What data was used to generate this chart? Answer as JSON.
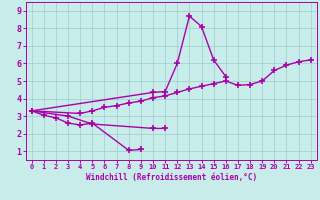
{
  "xlabel": "Windchill (Refroidissement éolien,°C)",
  "ylabel": "",
  "xlim": [
    -0.5,
    23.5
  ],
  "ylim": [
    0.5,
    9.5
  ],
  "xticks": [
    0,
    1,
    2,
    3,
    4,
    5,
    6,
    7,
    8,
    9,
    10,
    11,
    12,
    13,
    14,
    15,
    16,
    17,
    18,
    19,
    20,
    21,
    22,
    23
  ],
  "yticks": [
    1,
    2,
    3,
    4,
    5,
    6,
    7,
    8,
    9
  ],
  "bg_color": "#c8ecea",
  "grid_color": "#a0d4d0",
  "line_color": "#aa00aa",
  "line_width": 1.0,
  "marker": "+",
  "marker_size": 4,
  "marker_edge_width": 1.2,
  "series": [
    {
      "x": [
        0,
        1,
        2,
        3,
        4,
        5,
        8,
        9
      ],
      "y": [
        3.3,
        3.05,
        2.9,
        2.6,
        2.5,
        2.6,
        1.05,
        1.1
      ]
    },
    {
      "x": [
        0,
        3,
        5,
        10,
        11
      ],
      "y": [
        3.3,
        3.0,
        2.55,
        2.3,
        2.3
      ]
    },
    {
      "x": [
        0,
        10,
        11,
        12,
        13,
        14,
        15,
        16
      ],
      "y": [
        3.3,
        4.35,
        4.4,
        6.0,
        8.7,
        8.1,
        6.2,
        5.25
      ]
    },
    {
      "x": [
        0,
        4,
        5,
        6,
        7,
        8,
        9,
        10,
        11,
        12,
        13,
        14,
        15,
        16,
        17,
        18,
        19,
        20,
        21,
        22,
        23
      ],
      "y": [
        3.3,
        3.15,
        3.3,
        3.5,
        3.6,
        3.75,
        3.85,
        4.05,
        4.15,
        4.35,
        4.55,
        4.7,
        4.85,
        5.0,
        4.75,
        4.8,
        5.0,
        5.6,
        5.9,
        6.1,
        6.2
      ]
    }
  ],
  "xlabel_fontsize": 5.5,
  "tick_fontsize_x": 5.0,
  "tick_fontsize_y": 6.0
}
